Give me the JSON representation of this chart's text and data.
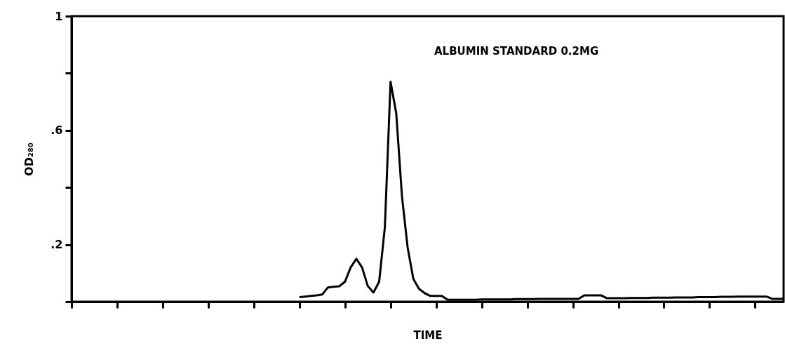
{
  "chart_data": {
    "type": "line",
    "xlabel": "TIME",
    "ylabel": "OD₂₈₀",
    "annotations": [
      "ALBUMIN STANDARD 0.2MG"
    ],
    "categories": [
      null,
      null,
      null,
      null,
      null,
      null,
      null,
      null,
      null,
      null,
      null,
      null,
      null,
      null,
      null,
      null,
      null,
      null,
      null,
      null,
      null,
      null,
      null,
      null,
      null,
      null,
      null,
      null,
      null,
      null,
      null,
      null,
      null,
      null,
      null,
      null,
      null,
      null,
      null,
      null,
      null,
      null,
      null,
      null,
      null,
      null,
      null,
      null,
      null,
      null,
      null,
      null,
      null,
      null,
      null,
      null,
      null,
      null,
      null,
      null,
      null,
      null,
      null,
      null,
      null,
      null,
      null,
      null,
      null,
      null,
      null,
      null,
      null,
      null,
      null,
      null,
      null,
      null,
      null,
      null,
      null,
      null,
      null,
      null,
      null,
      null,
      null,
      null,
      null,
      null,
      null,
      null,
      null,
      null,
      null,
      null,
      null,
      null,
      null,
      null,
      null,
      null,
      null,
      null,
      null,
      null,
      null,
      null,
      null,
      null,
      null,
      null,
      null,
      null,
      null,
      null,
      null,
      null,
      null,
      null,
      null,
      null,
      null,
      null,
      null,
      null
    ],
    "series": [
      {
        "color": "#000000",
        "values": [
          null,
          null,
          null,
          null,
          null,
          null,
          null,
          null,
          null,
          null,
          null,
          null,
          null,
          null,
          null,
          null,
          null,
          null,
          null,
          null,
          null,
          null,
          null,
          null,
          null,
          null,
          null,
          null,
          null,
          null,
          null,
          null,
          null,
          null,
          null,
          null,
          null,
          null,
          null,
          null,
          0.016,
          0.018,
          0.02,
          0.022,
          0.025,
          0.05,
          0.052,
          0.054,
          0.07,
          0.12,
          0.15,
          0.12,
          0.055,
          0.032,
          0.07,
          0.26,
          0.77,
          0.66,
          0.37,
          0.19,
          0.08,
          0.045,
          0.03,
          0.02,
          0.02,
          0.02,
          0.007,
          0.007,
          0.007,
          0.007,
          0.007,
          0.007,
          0.008,
          0.008,
          0.008,
          0.008,
          0.008,
          0.008,
          0.009,
          0.009,
          0.009,
          0.009,
          0.01,
          0.01,
          0.01,
          0.01,
          0.01,
          0.01,
          0.01,
          0.01,
          0.022,
          0.022,
          0.022,
          0.022,
          0.012,
          0.012,
          0.012,
          0.012,
          0.013,
          0.013,
          0.013,
          0.013,
          0.014,
          0.014,
          0.014,
          0.014,
          0.015,
          0.015,
          0.015,
          0.015,
          0.016,
          0.016,
          0.016,
          0.016,
          0.017,
          0.017,
          0.017,
          0.018,
          0.018,
          0.018,
          0.018,
          0.018,
          0.018,
          0.01,
          0.01,
          0.01
        ]
      }
    ],
    "ylim": [
      0,
      1
    ],
    "yticks": [
      {
        "value": 0,
        "label": null
      },
      {
        "value": 0.2,
        "label": ".2"
      },
      {
        "value": 0.4,
        "label": null
      },
      {
        "value": 0.6,
        "label": ".6"
      },
      {
        "value": 0.8,
        "label": null
      },
      1
    ],
    "tick_labels": "y",
    "grid": false,
    "line_style": "solid",
    "marker": "none"
  }
}
